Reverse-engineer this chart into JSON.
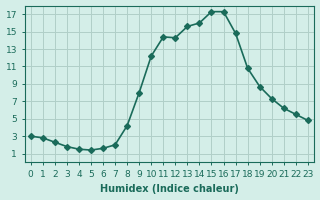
{
  "x": [
    0,
    1,
    2,
    3,
    4,
    5,
    6,
    7,
    8,
    9,
    10,
    11,
    12,
    13,
    14,
    15,
    16,
    17,
    18,
    19,
    20,
    21,
    22,
    23
  ],
  "y": [
    3.0,
    2.8,
    2.3,
    1.8,
    1.5,
    1.4,
    1.6,
    2.0,
    4.2,
    8.0,
    12.2,
    14.4,
    14.3,
    15.6,
    16.0,
    17.3,
    17.3,
    14.8,
    10.8,
    8.7,
    7.3,
    6.2,
    5.5,
    4.8
  ],
  "line_color": "#1a6b5a",
  "marker": "D",
  "marker_size": 3,
  "bg_color": "#d4eee8",
  "grid_color": "#b0cfc8",
  "xlabel": "Humidex (Indice chaleur)",
  "ylabel": "",
  "xlim": [
    -0.5,
    23.5
  ],
  "ylim": [
    0,
    18
  ],
  "xticks": [
    0,
    1,
    2,
    3,
    4,
    5,
    6,
    7,
    8,
    9,
    10,
    11,
    12,
    13,
    14,
    15,
    16,
    17,
    18,
    19,
    20,
    21,
    22,
    23
  ],
  "yticks": [
    1,
    3,
    5,
    7,
    9,
    11,
    13,
    15,
    17
  ],
  "xlabel_fontsize": 7,
  "tick_fontsize": 6.5,
  "line_width": 1.2
}
